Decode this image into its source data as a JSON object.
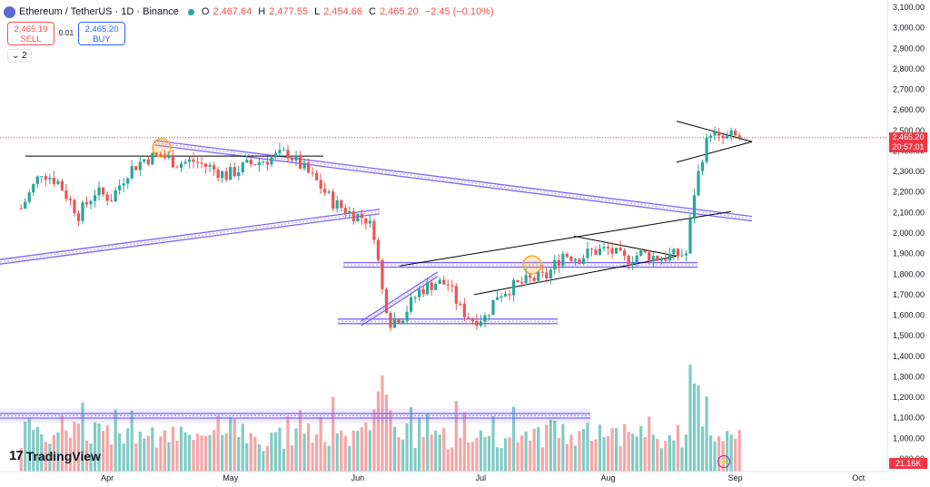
{
  "header": {
    "symbol": "Ethereum / TetherUS · 1D · Binance",
    "ohlc": [
      {
        "k": "O",
        "v": "2,467.64"
      },
      {
        "k": "H",
        "v": "2,477.55"
      },
      {
        "k": "L",
        "v": "2,454.66"
      },
      {
        "k": "C",
        "v": "2,465.20"
      }
    ],
    "change": "−2.45 (−0.10%)"
  },
  "trade": {
    "sell_price": "2,465.19",
    "sell_label": "SELL",
    "spread": "0.01",
    "buy_price": "2,465.20",
    "buy_label": "BUY"
  },
  "indicators_label": "2",
  "brand": "TradingView",
  "price_tag": {
    "price": "2,465.20",
    "countdown": "20:57:01"
  },
  "volume_tag": "21.16K",
  "colors": {
    "up": "#26a69a",
    "down": "#ef5350",
    "vol_up": "#80cbc4",
    "vol_down": "#f7a5a5",
    "trendline": "#7b61ff",
    "pattern": "#000000",
    "highlight": "#f9a825"
  },
  "chart_data": {
    "type": "candlestick",
    "ylim": [
      900,
      3100
    ],
    "y_ticks": [
      "3,100.00",
      "3,000.00",
      "2,900.00",
      "2,800.00",
      "2,700.00",
      "2,600.00",
      "2,500.00",
      "2,400.00",
      "2,300.00",
      "2,200.00",
      "2,100.00",
      "2,000.00",
      "1,900.00",
      "1,800.00",
      "1,700.00",
      "1,600.00",
      "1,500.00",
      "1,400.00",
      "1,300.00",
      "1,200.00",
      "1,100.00",
      "1,000.00",
      "900.00"
    ],
    "x_ticks": [
      "Apr",
      "May",
      "Jun",
      "Jul",
      "Aug",
      "Sep",
      "Oct"
    ],
    "close_series": [
      {
        "date": "2024-03-11",
        "close": 2120
      },
      {
        "date": "2024-03-16",
        "close": 2300
      },
      {
        "date": "2024-03-20",
        "close": 2250
      },
      {
        "date": "2024-03-25",
        "close": 2090
      },
      {
        "date": "2024-03-29",
        "close": 2200
      },
      {
        "date": "2024-04-02",
        "close": 2170
      },
      {
        "date": "2024-04-06",
        "close": 2300
      },
      {
        "date": "2024-04-10",
        "close": 2360
      },
      {
        "date": "2024-04-14",
        "close": 2380
      },
      {
        "date": "2024-04-18",
        "close": 2340
      },
      {
        "date": "2024-04-22",
        "close": 2350
      },
      {
        "date": "2024-04-26",
        "close": 2320
      },
      {
        "date": "2024-04-30",
        "close": 2280
      },
      {
        "date": "2024-05-05",
        "close": 2330
      },
      {
        "date": "2024-05-10",
        "close": 2360
      },
      {
        "date": "2024-05-15",
        "close": 2390
      },
      {
        "date": "2024-05-19",
        "close": 2310
      },
      {
        "date": "2024-05-22",
        "close": 2250
      },
      {
        "date": "2024-05-26",
        "close": 2150
      },
      {
        "date": "2024-05-30",
        "close": 2100
      },
      {
        "date": "2024-06-03",
        "close": 2070
      },
      {
        "date": "2024-06-05",
        "close": 2000
      },
      {
        "date": "2024-06-07",
        "close": 1720
      },
      {
        "date": "2024-06-09",
        "close": 1570
      },
      {
        "date": "2024-06-12",
        "close": 1600
      },
      {
        "date": "2024-06-16",
        "close": 1720
      },
      {
        "date": "2024-06-20",
        "close": 1760
      },
      {
        "date": "2024-06-23",
        "close": 1750
      },
      {
        "date": "2024-06-26",
        "close": 1630
      },
      {
        "date": "2024-06-29",
        "close": 1580
      },
      {
        "date": "2024-07-02",
        "close": 1590
      },
      {
        "date": "2024-07-05",
        "close": 1700
      },
      {
        "date": "2024-07-09",
        "close": 1740
      },
      {
        "date": "2024-07-13",
        "close": 1770
      },
      {
        "date": "2024-07-17",
        "close": 1790
      },
      {
        "date": "2024-07-21",
        "close": 1900
      },
      {
        "date": "2024-07-25",
        "close": 1880
      },
      {
        "date": "2024-07-28",
        "close": 1910
      },
      {
        "date": "2024-08-01",
        "close": 1920
      },
      {
        "date": "2024-08-05",
        "close": 1870
      },
      {
        "date": "2024-08-09",
        "close": 1900
      },
      {
        "date": "2024-08-13",
        "close": 1880
      },
      {
        "date": "2024-08-17",
        "close": 1890
      },
      {
        "date": "2024-08-20",
        "close": 1900
      },
      {
        "date": "2024-08-22",
        "close": 2200
      },
      {
        "date": "2024-08-24",
        "close": 2380
      },
      {
        "date": "2024-08-26",
        "close": 2500
      },
      {
        "date": "2024-08-28",
        "close": 2450
      },
      {
        "date": "2024-08-31",
        "close": 2470
      },
      {
        "date": "2024-09-02",
        "close": 2465
      }
    ],
    "volume_area": {
      "from": 900,
      "to": 1400
    }
  }
}
